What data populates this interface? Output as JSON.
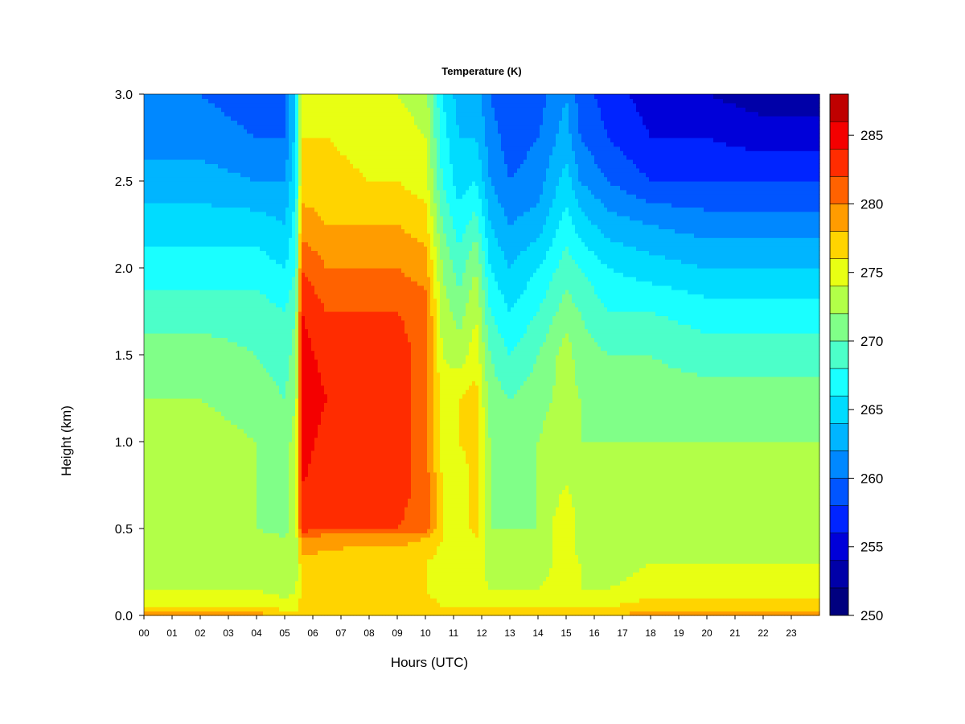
{
  "chart_data": {
    "type": "heatmap",
    "title": "Temperature (K)",
    "xlabel": "Hours (UTC)",
    "ylabel": "Height (km)",
    "xlim": [
      0,
      24
    ],
    "ylim": [
      0,
      3
    ],
    "x_ticks": [
      0,
      1,
      2,
      3,
      4,
      5,
      6,
      7,
      8,
      9,
      10,
      11,
      12,
      13,
      14,
      15,
      16,
      17,
      18,
      19,
      20,
      21,
      22,
      23
    ],
    "x_tick_labels": [
      "00",
      "01",
      "02",
      "03",
      "04",
      "05",
      "06",
      "07",
      "08",
      "09",
      "10",
      "11",
      "12",
      "13",
      "14",
      "15",
      "16",
      "17",
      "18",
      "19",
      "20",
      "21",
      "22",
      "23"
    ],
    "y_ticks": [
      0.0,
      0.5,
      1.0,
      1.5,
      2.0,
      2.5,
      3.0
    ],
    "y_tick_labels": [
      "0.0",
      "0.5",
      "1.0",
      "1.5",
      "2.0",
      "2.5",
      "3.0"
    ],
    "colorbar": {
      "min": 250,
      "max": 288,
      "levels": [
        250,
        252,
        254,
        256,
        258,
        260,
        262,
        264,
        266,
        268,
        270,
        272,
        274,
        276,
        278,
        280,
        282,
        284,
        286,
        288
      ],
      "colors": [
        "#00007f",
        "#0000a8",
        "#0000d9",
        "#0024ff",
        "#0055ff",
        "#0088ff",
        "#00b5ff",
        "#00dcff",
        "#1affff",
        "#4cffc9",
        "#80ff88",
        "#b2ff48",
        "#e8ff13",
        "#ffd400",
        "#ff9c00",
        "#ff6200",
        "#ff2c00",
        "#f40000",
        "#bf0000",
        "#800000"
      ],
      "ticks": [
        250,
        255,
        260,
        265,
        270,
        275,
        280,
        285
      ],
      "tick_labels": [
        "250",
        "255",
        "260",
        "265",
        "270",
        "275",
        "280",
        "285"
      ]
    },
    "grid": false,
    "heights_km": [
      0.0,
      0.05,
      0.15,
      0.3,
      0.45,
      0.5,
      0.75,
      1.0,
      1.25,
      1.5,
      1.75,
      2.0,
      2.25,
      2.5,
      2.75,
      3.0
    ],
    "profiles": [
      {
        "hour": 0.0,
        "values": [
          279,
          276,
          274,
          273,
          273,
          273,
          273,
          273,
          272,
          271,
          269,
          267,
          265,
          263,
          261,
          260
        ]
      },
      {
        "hour": 2.0,
        "values": [
          279,
          276,
          274,
          273,
          273,
          273,
          273,
          273,
          272,
          271,
          269,
          267,
          265,
          263,
          261,
          260
        ]
      },
      {
        "hour": 4.0,
        "values": [
          279,
          276,
          274,
          273,
          273,
          272,
          272,
          272,
          271,
          270,
          269,
          267,
          265,
          262,
          260,
          259
        ]
      },
      {
        "hour": 5.0,
        "values": [
          278,
          275,
          273,
          272,
          272,
          271,
          271,
          271,
          270,
          269,
          268,
          266,
          264,
          262,
          260,
          259
        ]
      },
      {
        "hour": 5.4,
        "values": [
          278,
          275,
          274,
          273,
          273,
          273,
          273,
          273,
          272,
          271,
          270,
          268,
          267,
          266,
          265,
          265
        ]
      },
      {
        "hour": 5.6,
        "values": [
          278,
          277,
          276,
          277,
          280,
          283,
          284,
          285,
          286,
          285,
          284,
          282,
          279,
          277,
          276,
          275
        ]
      },
      {
        "hour": 6.5,
        "values": [
          278,
          277,
          276,
          277,
          279,
          282,
          283,
          283,
          284,
          283,
          282,
          280,
          278,
          277,
          276,
          275
        ]
      },
      {
        "hour": 8.0,
        "values": [
          278,
          277,
          276,
          276,
          279,
          282,
          283,
          284,
          284,
          284,
          282,
          280,
          278,
          276,
          275,
          274
        ]
      },
      {
        "hour": 9.0,
        "values": [
          278,
          277,
          276,
          276,
          279,
          282,
          283,
          283,
          283,
          283,
          282,
          280,
          278,
          276,
          275,
          274
        ]
      },
      {
        "hour": 10.0,
        "values": [
          278,
          277,
          276,
          276,
          278,
          281,
          281,
          281,
          281,
          281,
          281,
          279,
          277,
          275,
          274,
          273
        ]
      },
      {
        "hour": 10.6,
        "values": [
          278,
          276,
          275,
          275,
          276,
          276,
          276,
          275,
          275,
          274,
          273,
          272,
          270,
          268,
          267,
          266
        ]
      },
      {
        "hour": 11.2,
        "values": [
          278,
          276,
          275,
          274,
          274,
          274,
          274,
          276,
          276,
          273,
          271,
          269,
          267,
          265,
          264,
          263
        ]
      },
      {
        "hour": 11.8,
        "values": [
          278,
          276,
          275,
          275,
          276,
          277,
          277,
          277,
          277,
          275,
          274,
          272,
          269,
          266,
          264,
          263
        ]
      },
      {
        "hour": 12.3,
        "values": [
          278,
          276,
          274,
          273,
          273,
          272,
          272,
          272,
          271,
          270,
          268,
          266,
          264,
          262,
          261,
          260
        ]
      },
      {
        "hour": 13.0,
        "values": [
          278,
          276,
          274,
          273,
          272,
          272,
          271,
          271,
          270,
          268,
          266,
          264,
          262,
          260,
          259,
          258
        ]
      },
      {
        "hour": 14.0,
        "values": [
          278,
          276,
          274,
          273,
          273,
          272,
          272,
          272,
          271,
          270,
          268,
          266,
          263,
          261,
          260,
          259
        ]
      },
      {
        "hour": 15.0,
        "values": [
          278,
          276,
          275,
          275,
          275,
          276,
          274,
          274,
          273,
          273,
          271,
          269,
          267,
          265,
          263,
          262
        ]
      },
      {
        "hour": 15.5,
        "values": [
          278,
          276,
          274,
          274,
          273,
          273,
          273,
          272,
          272,
          271,
          270,
          268,
          265,
          262,
          260,
          259
        ]
      },
      {
        "hour": 16.5,
        "values": [
          278,
          276,
          274,
          273,
          273,
          272,
          272,
          272,
          271,
          270,
          268,
          266,
          263,
          260,
          258,
          257
        ]
      },
      {
        "hour": 18.0,
        "values": [
          279,
          277,
          275,
          274,
          273,
          273,
          273,
          272,
          271,
          270,
          268,
          265,
          262,
          258,
          256,
          255
        ]
      },
      {
        "hour": 20.0,
        "values": [
          279,
          277,
          275,
          274,
          273,
          273,
          273,
          272,
          271,
          269,
          267,
          264,
          261,
          258,
          256,
          254
        ]
      },
      {
        "hour": 22.0,
        "values": [
          279,
          277,
          275,
          274,
          273,
          273,
          273,
          272,
          271,
          269,
          267,
          264,
          261,
          258,
          255,
          253
        ]
      },
      {
        "hour": 23.8,
        "values": [
          279,
          277,
          275,
          274,
          273,
          273,
          273,
          272,
          271,
          269,
          267,
          264,
          261,
          258,
          255,
          253
        ]
      }
    ]
  }
}
